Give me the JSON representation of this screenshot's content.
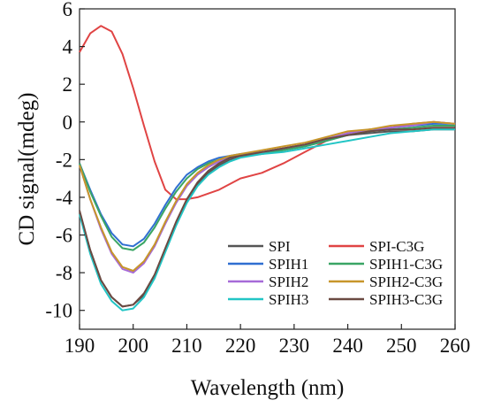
{
  "chart_data": {
    "type": "line",
    "xlabel": "Wavelength (nm)",
    "ylabel": "CD signal(mdeg)",
    "xlim": [
      190,
      260
    ],
    "ylim": [
      -11,
      6
    ],
    "xticks": [
      190,
      200,
      210,
      220,
      230,
      240,
      250,
      260
    ],
    "yticks": [
      6,
      4,
      2,
      0,
      -2,
      -4,
      -6,
      -8,
      -10
    ],
    "grid": false,
    "legend_position": "bottom-right",
    "x": [
      190,
      192,
      194,
      196,
      198,
      200,
      202,
      204,
      206,
      208,
      210,
      212,
      214,
      216,
      218,
      220,
      224,
      228,
      232,
      236,
      240,
      244,
      248,
      252,
      256,
      260
    ],
    "series": [
      {
        "name": "SPI",
        "color": "#555555",
        "values": [
          -4.8,
          -6.8,
          -8.4,
          -9.3,
          -9.8,
          -9.7,
          -9.2,
          -8.2,
          -6.8,
          -5.4,
          -4.2,
          -3.3,
          -2.7,
          -2.3,
          -2.0,
          -1.8,
          -1.6,
          -1.4,
          -1.2,
          -0.9,
          -0.7,
          -0.6,
          -0.5,
          -0.5,
          -0.4,
          -0.4
        ]
      },
      {
        "name": "SPI-C3G",
        "color": "#e04444",
        "values": [
          3.7,
          4.7,
          5.1,
          4.8,
          3.6,
          1.8,
          -0.2,
          -2.1,
          -3.6,
          -4.1,
          -4.1,
          -4.0,
          -3.8,
          -3.6,
          -3.3,
          -3.0,
          -2.7,
          -2.2,
          -1.6,
          -1.0,
          -0.6,
          -0.4,
          -0.3,
          -0.1,
          0.0,
          -0.1
        ]
      },
      {
        "name": "SPIH1",
        "color": "#2f6fd1",
        "values": [
          -2.2,
          -3.6,
          -4.9,
          -5.9,
          -6.5,
          -6.6,
          -6.2,
          -5.4,
          -4.4,
          -3.5,
          -2.8,
          -2.4,
          -2.1,
          -1.9,
          -1.8,
          -1.7,
          -1.6,
          -1.5,
          -1.3,
          -1.0,
          -0.7,
          -0.5,
          -0.3,
          -0.2,
          -0.1,
          -0.1
        ]
      },
      {
        "name": "SPIH1-C3G",
        "color": "#3aa565",
        "values": [
          -2.2,
          -3.7,
          -5.0,
          -6.1,
          -6.7,
          -6.8,
          -6.4,
          -5.6,
          -4.6,
          -3.7,
          -3.0,
          -2.5,
          -2.2,
          -2.0,
          -1.9,
          -1.8,
          -1.7,
          -1.5,
          -1.3,
          -1.0,
          -0.7,
          -0.5,
          -0.4,
          -0.3,
          -0.2,
          -0.2
        ]
      },
      {
        "name": "SPIH2",
        "color": "#a66ad8",
        "values": [
          -2.3,
          -4.1,
          -5.7,
          -7.0,
          -7.8,
          -8.0,
          -7.5,
          -6.6,
          -5.4,
          -4.3,
          -3.4,
          -2.8,
          -2.4,
          -2.1,
          -1.9,
          -1.8,
          -1.6,
          -1.4,
          -1.2,
          -0.9,
          -0.6,
          -0.4,
          -0.3,
          -0.2,
          0.0,
          -0.1
        ]
      },
      {
        "name": "SPIH2-C3G",
        "color": "#c7962a",
        "values": [
          -2.3,
          -4.1,
          -5.6,
          -6.9,
          -7.7,
          -7.9,
          -7.4,
          -6.5,
          -5.3,
          -4.2,
          -3.3,
          -2.7,
          -2.3,
          -2.0,
          -1.8,
          -1.7,
          -1.5,
          -1.3,
          -1.1,
          -0.8,
          -0.5,
          -0.4,
          -0.2,
          -0.1,
          0.0,
          -0.1
        ]
      },
      {
        "name": "SPIH3",
        "color": "#22c5c5",
        "values": [
          -4.9,
          -7.0,
          -8.6,
          -9.5,
          -10.0,
          -9.9,
          -9.3,
          -8.3,
          -6.9,
          -5.5,
          -4.3,
          -3.4,
          -2.8,
          -2.4,
          -2.1,
          -1.9,
          -1.7,
          -1.6,
          -1.4,
          -1.2,
          -1.0,
          -0.8,
          -0.6,
          -0.5,
          -0.4,
          -0.4
        ]
      },
      {
        "name": "SPIH3-C3G",
        "color": "#6b4a42",
        "values": [
          -4.7,
          -6.8,
          -8.4,
          -9.3,
          -9.8,
          -9.7,
          -9.1,
          -8.1,
          -6.7,
          -5.3,
          -4.1,
          -3.2,
          -2.6,
          -2.2,
          -1.9,
          -1.8,
          -1.6,
          -1.4,
          -1.2,
          -0.9,
          -0.7,
          -0.5,
          -0.4,
          -0.4,
          -0.3,
          -0.3
        ]
      }
    ]
  }
}
